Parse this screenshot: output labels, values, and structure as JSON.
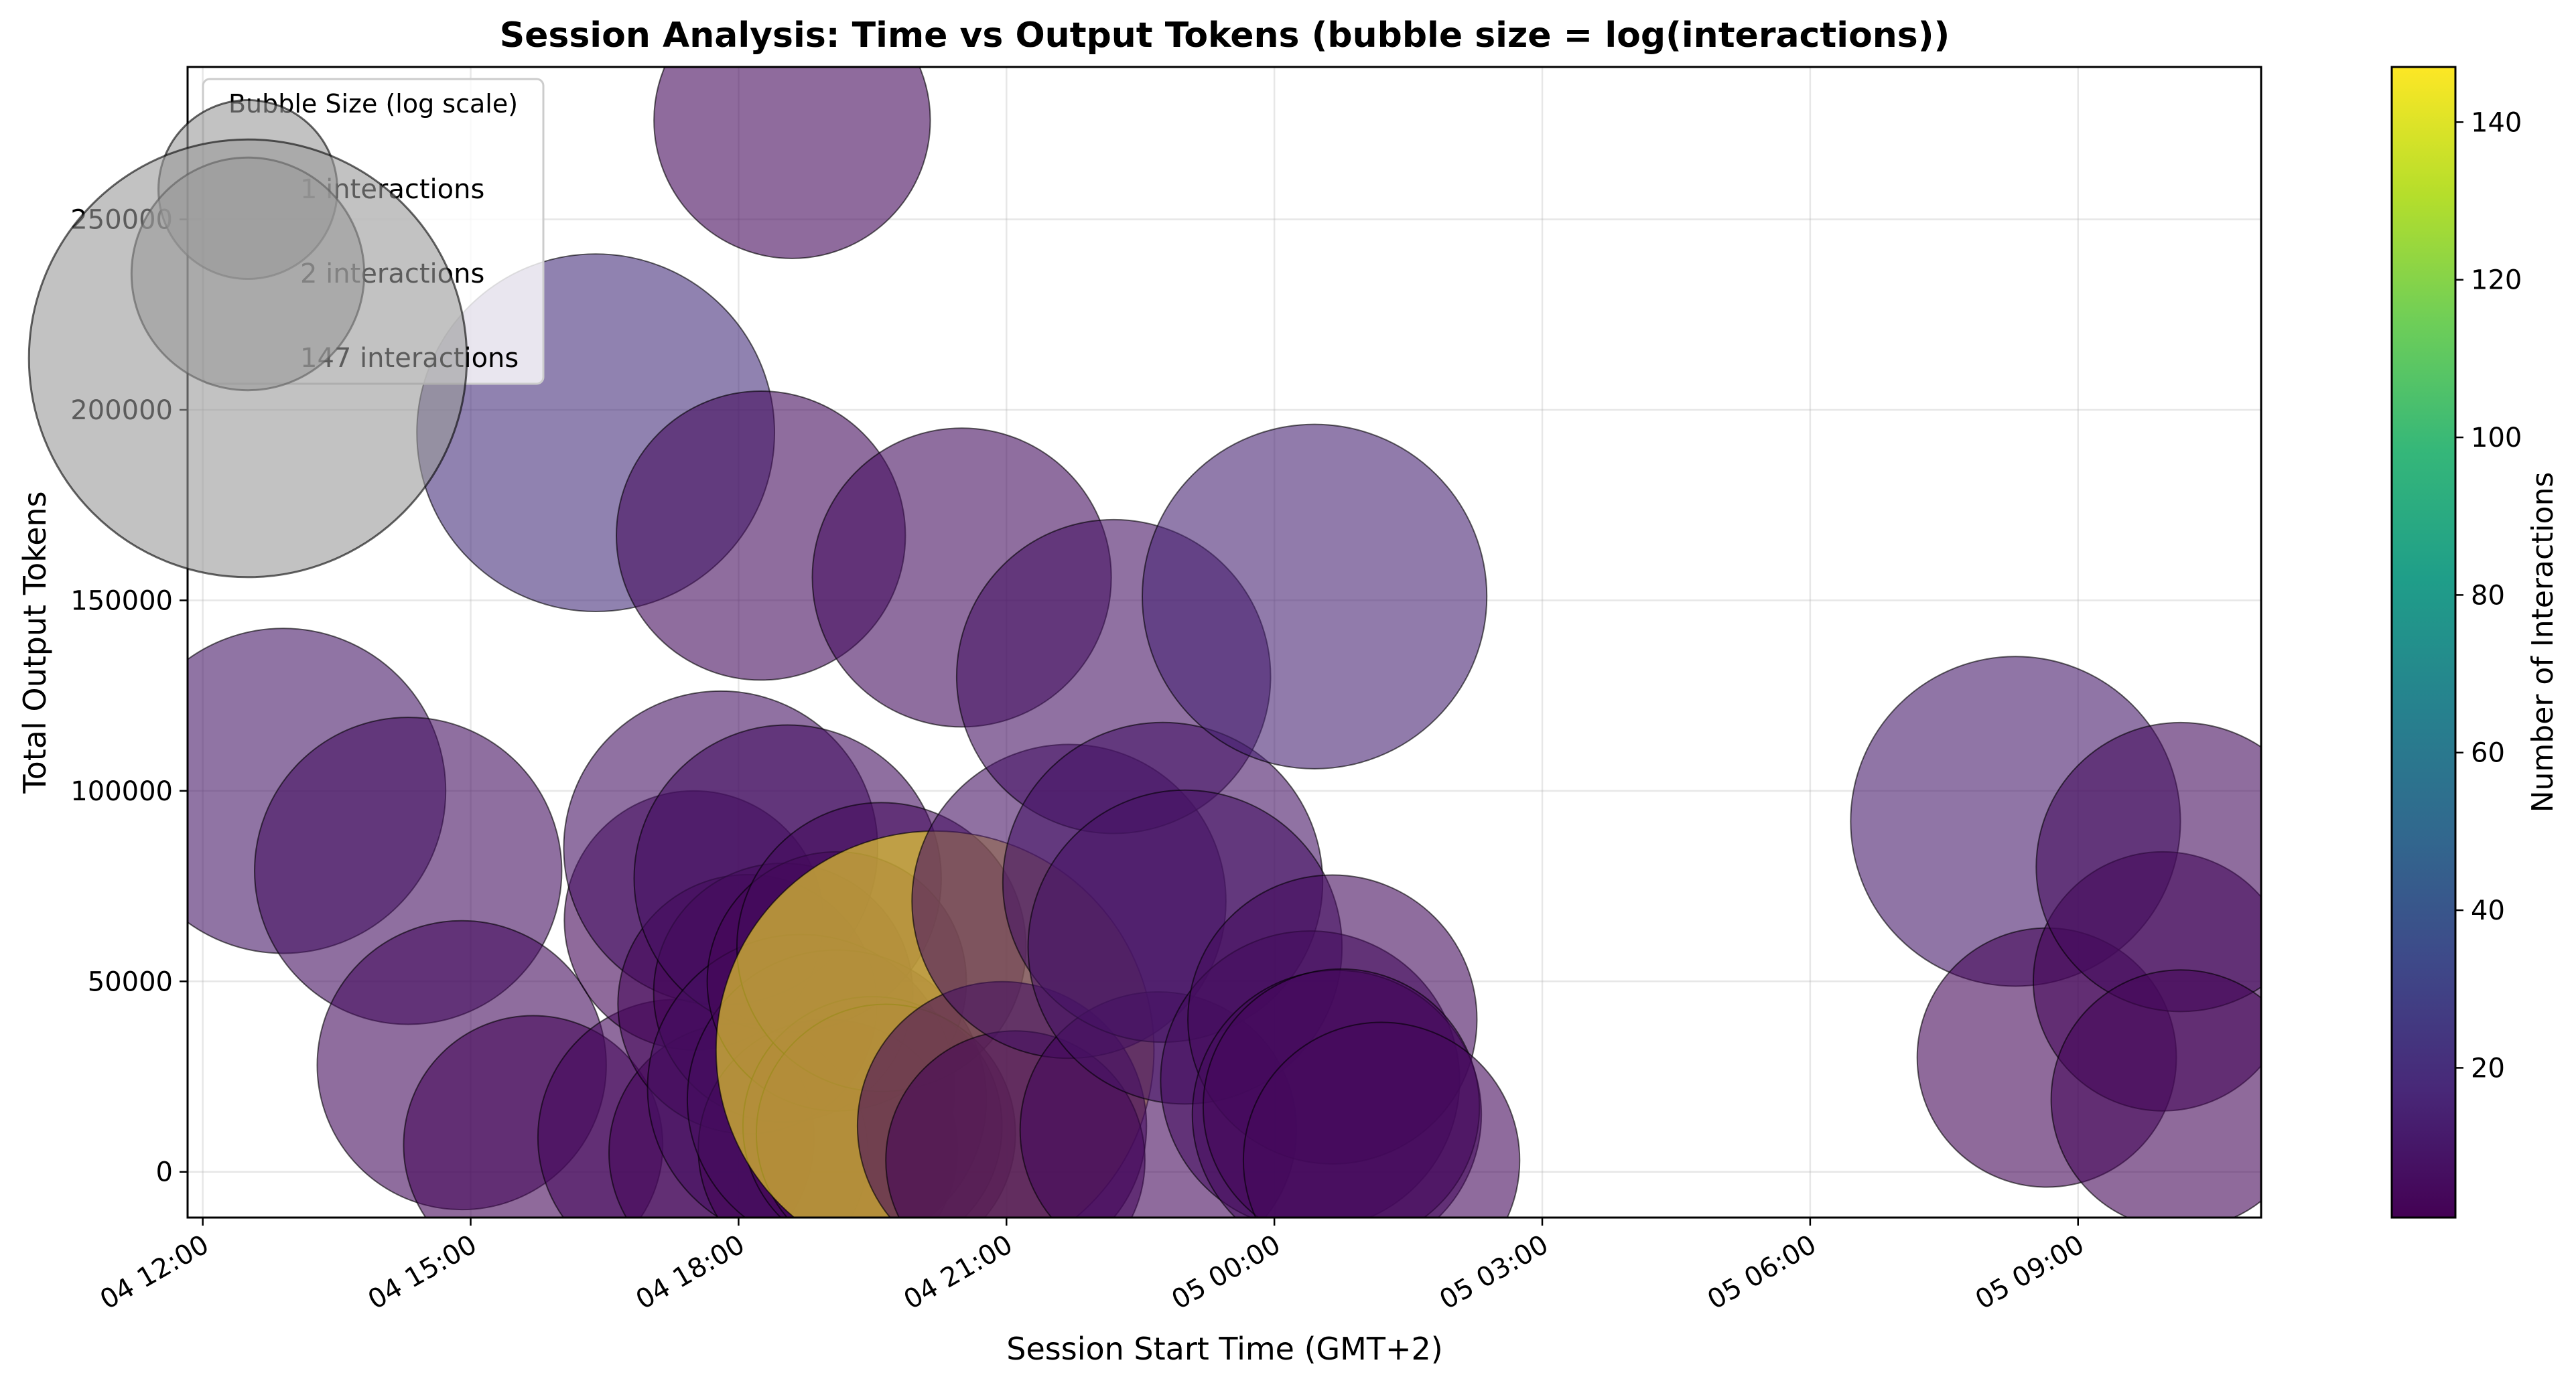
{
  "chart_data": {
    "type": "scatter",
    "title": "Session Analysis: Time vs Output Tokens (bubble size = log(interactions))",
    "xlabel": "Session Start Time (GMT+2)",
    "ylabel": "Total Output Tokens",
    "x_unit": "hours since 04 12:00 (GMT+2)",
    "xlim": [
      -0.17,
      23.05
    ],
    "ylim": [
      -12000,
      290000
    ],
    "grid": true,
    "x_ticks": [
      {
        "value": 0,
        "label": "04 12:00"
      },
      {
        "value": 3,
        "label": "04 15:00"
      },
      {
        "value": 6,
        "label": "04 18:00"
      },
      {
        "value": 9,
        "label": "04 21:00"
      },
      {
        "value": 12,
        "label": "05 00:00"
      },
      {
        "value": 15,
        "label": "05 03:00"
      },
      {
        "value": 18,
        "label": "05 06:00"
      },
      {
        "value": 21,
        "label": "05 09:00"
      }
    ],
    "y_ticks": [
      {
        "value": 0,
        "label": "0"
      },
      {
        "value": 50000,
        "label": "50000"
      },
      {
        "value": 100000,
        "label": "100000"
      },
      {
        "value": 150000,
        "label": "150000"
      },
      {
        "value": 200000,
        "label": "200000"
      },
      {
        "value": 250000,
        "label": "250000"
      }
    ],
    "colorbar": {
      "label": "Number of Interactions",
      "min": 1,
      "max": 147,
      "colormap": "viridis",
      "ticks": [
        {
          "value": 20,
          "label": "20"
        },
        {
          "value": 40,
          "label": "40"
        },
        {
          "value": 60,
          "label": "60"
        },
        {
          "value": 80,
          "label": "80"
        },
        {
          "value": 100,
          "label": "100"
        },
        {
          "value": 120,
          "label": "120"
        },
        {
          "value": 140,
          "label": "140"
        }
      ],
      "stops": [
        "#440154",
        "#482878",
        "#3e4989",
        "#31688e",
        "#26828e",
        "#1f9e89",
        "#35b779",
        "#6ece58",
        "#b5de2b",
        "#fde725"
      ]
    },
    "bubble_alpha": 0.6,
    "bubble_edge_color": "#000000",
    "legend": {
      "title": "Bubble Size (log scale)",
      "location": "top-left",
      "marker_color": "#999999",
      "entries": [
        {
          "label": "1 interactions",
          "interactions": 1
        },
        {
          "label": "2 interactions",
          "interactions": 2
        },
        {
          "label": "147 interactions",
          "interactions": 147
        }
      ]
    },
    "points": [
      {
        "x": 0.9,
        "y": 100000,
        "interactions": 10
      },
      {
        "x": 2.3,
        "y": 79000,
        "interactions": 7
      },
      {
        "x": 2.9,
        "y": 28000,
        "interactions": 5
      },
      {
        "x": 3.7,
        "y": 7000,
        "interactions": 3
      },
      {
        "x": 4.4,
        "y": 194000,
        "interactions": 20
      },
      {
        "x": 5.3,
        "y": 9000,
        "interactions": 4
      },
      {
        "x": 5.5,
        "y": 66000,
        "interactions": 3
      },
      {
        "x": 5.8,
        "y": 85000,
        "interactions": 8
      },
      {
        "x": 6.0,
        "y": 5000,
        "interactions": 3
      },
      {
        "x": 6.1,
        "y": 44000,
        "interactions": 3
      },
      {
        "x": 6.25,
        "y": 167000,
        "interactions": 5
      },
      {
        "x": 6.5,
        "y": 47000,
        "interactions": 3
      },
      {
        "x": 6.55,
        "y": 77000,
        "interactions": 7
      },
      {
        "x": 6.6,
        "y": 276000,
        "interactions": 4
      },
      {
        "x": 6.7,
        "y": 22000,
        "interactions": 7
      },
      {
        "x": 7.0,
        "y": 6000,
        "interactions": 3
      },
      {
        "x": 7.1,
        "y": 19000,
        "interactions": 6
      },
      {
        "x": 7.1,
        "y": 50000,
        "interactions": 3
      },
      {
        "x": 7.5,
        "y": 12000,
        "interactions": 3
      },
      {
        "x": 7.6,
        "y": 59000,
        "interactions": 5
      },
      {
        "x": 7.65,
        "y": 10000,
        "interactions": 3
      },
      {
        "x": 8.2,
        "y": 32000,
        "interactions": 147
      },
      {
        "x": 8.5,
        "y": 156000,
        "interactions": 6
      },
      {
        "x": 8.95,
        "y": 12000,
        "interactions": 5
      },
      {
        "x": 9.1,
        "y": 3000,
        "interactions": 3
      },
      {
        "x": 9.7,
        "y": 71000,
        "interactions": 8
      },
      {
        "x": 10.2,
        "y": 130000,
        "interactions": 8
      },
      {
        "x": 10.7,
        "y": 11000,
        "interactions": 4
      },
      {
        "x": 10.75,
        "y": 76000,
        "interactions": 9
      },
      {
        "x": 11.0,
        "y": 59000,
        "interactions": 8
      },
      {
        "x": 12.4,
        "y": 24000,
        "interactions": 6
      },
      {
        "x": 12.45,
        "y": 151000,
        "interactions": 15
      },
      {
        "x": 12.65,
        "y": 40000,
        "interactions": 5
      },
      {
        "x": 12.7,
        "y": 15000,
        "interactions": 5
      },
      {
        "x": 12.75,
        "y": 17000,
        "interactions": 4
      },
      {
        "x": 13.2,
        "y": 3000,
        "interactions": 4
      },
      {
        "x": 20.3,
        "y": 92000,
        "interactions": 11
      },
      {
        "x": 20.65,
        "y": 30000,
        "interactions": 3
      },
      {
        "x": 21.95,
        "y": 50000,
        "interactions": 3
      },
      {
        "x": 22.15,
        "y": 80000,
        "interactions": 5
      },
      {
        "x": 22.15,
        "y": 19000,
        "interactions": 3
      }
    ]
  }
}
